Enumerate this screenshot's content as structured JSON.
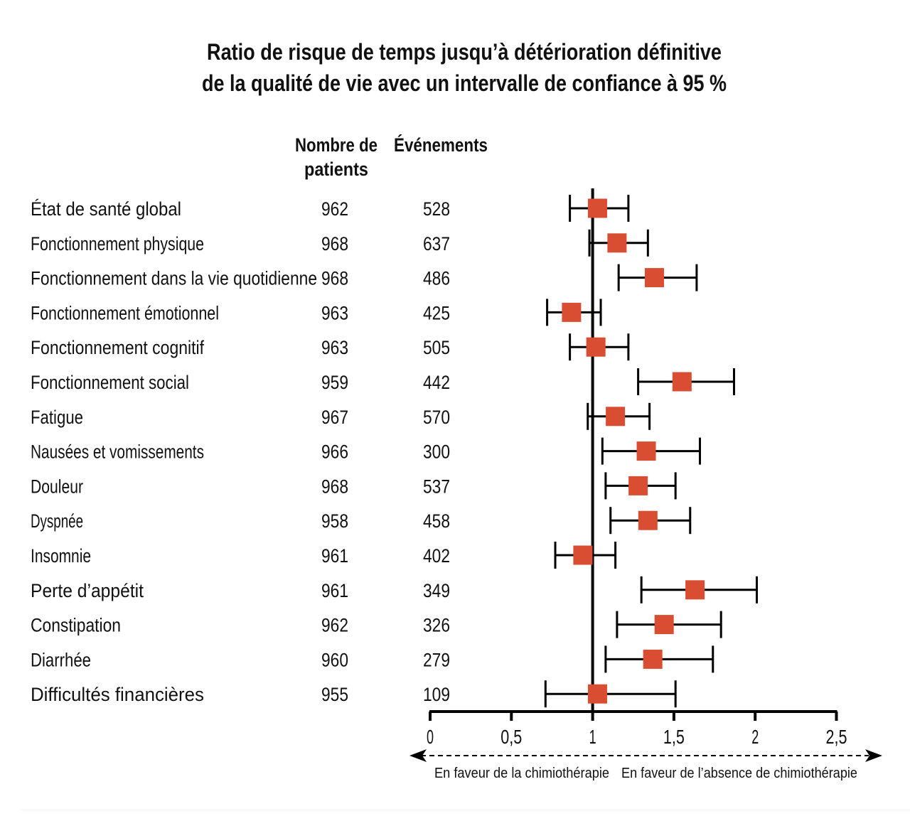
{
  "title_lines": [
    "Ratio de risque de temps jusqu’à détérioration définitive",
    "de la qualité de vie avec un intervalle de confiance à 95 %"
  ],
  "columns": {
    "patients_header": [
      "Nombre de",
      "patients"
    ],
    "events_header": "Événements"
  },
  "colors": {
    "marker": "#D94E32",
    "line": "#000000"
  },
  "chart_data": {
    "type": "forest",
    "title": "Ratio de risque de temps jusqu’à détérioration définitive de la qualité de vie avec un intervalle de confiance à 95 %",
    "xlabel": "",
    "xlim": [
      0,
      2.5
    ],
    "xticks": [
      0,
      0.5,
      1,
      1.5,
      2,
      2.5
    ],
    "xtick_labels": [
      "0",
      "0,5",
      "1",
      "1,5",
      "2",
      "2,5"
    ],
    "reference_line": 1,
    "direction_labels": {
      "left": "En faveur de la chimiothérapie",
      "right": "En faveur de l’absence de chimiothérapie"
    },
    "rows": [
      {
        "label": "État de santé global",
        "patients": "962",
        "events": "528",
        "hr": 1.03,
        "lo": 0.86,
        "hi": 1.22
      },
      {
        "label": "Fonctionnement physique",
        "patients": "968",
        "events": "637",
        "hr": 1.15,
        "lo": 0.98,
        "hi": 1.34
      },
      {
        "label": "Fonctionnement dans la vie quotidienne",
        "patients": "968",
        "events": "486",
        "hr": 1.38,
        "lo": 1.16,
        "hi": 1.64
      },
      {
        "label": "Fonctionnement émotionnel",
        "patients": "963",
        "events": "425",
        "hr": 0.87,
        "lo": 0.72,
        "hi": 1.05
      },
      {
        "label": "Fonctionnement cognitif",
        "patients": "963",
        "events": "505",
        "hr": 1.02,
        "lo": 0.86,
        "hi": 1.22
      },
      {
        "label": "Fonctionnement social",
        "patients": "959",
        "events": "442",
        "hr": 1.55,
        "lo": 1.28,
        "hi": 1.87
      },
      {
        "label": "Fatigue",
        "patients": "967",
        "events": "570",
        "hr": 1.14,
        "lo": 0.97,
        "hi": 1.35
      },
      {
        "label": "Nausées et vomissements",
        "patients": "966",
        "events": "300",
        "hr": 1.33,
        "lo": 1.06,
        "hi": 1.66
      },
      {
        "label": "Douleur",
        "patients": "968",
        "events": "537",
        "hr": 1.28,
        "lo": 1.08,
        "hi": 1.51
      },
      {
        "label": "Dyspnée",
        "patients": "958",
        "events": "458",
        "hr": 1.34,
        "lo": 1.11,
        "hi": 1.6
      },
      {
        "label": "Insomnie",
        "patients": "961",
        "events": "402",
        "hr": 0.94,
        "lo": 0.77,
        "hi": 1.14
      },
      {
        "label": "Perte d’appétit",
        "patients": "961",
        "events": "349",
        "hr": 1.63,
        "lo": 1.3,
        "hi": 2.01
      },
      {
        "label": "Constipation",
        "patients": "962",
        "events": "326",
        "hr": 1.44,
        "lo": 1.15,
        "hi": 1.79
      },
      {
        "label": "Diarrhée",
        "patients": "960",
        "events": "279",
        "hr": 1.37,
        "lo": 1.08,
        "hi": 1.74
      },
      {
        "label": "Difficultés financières",
        "patients": "955",
        "events": "109",
        "hr": 1.03,
        "lo": 0.71,
        "hi": 1.51
      }
    ]
  }
}
